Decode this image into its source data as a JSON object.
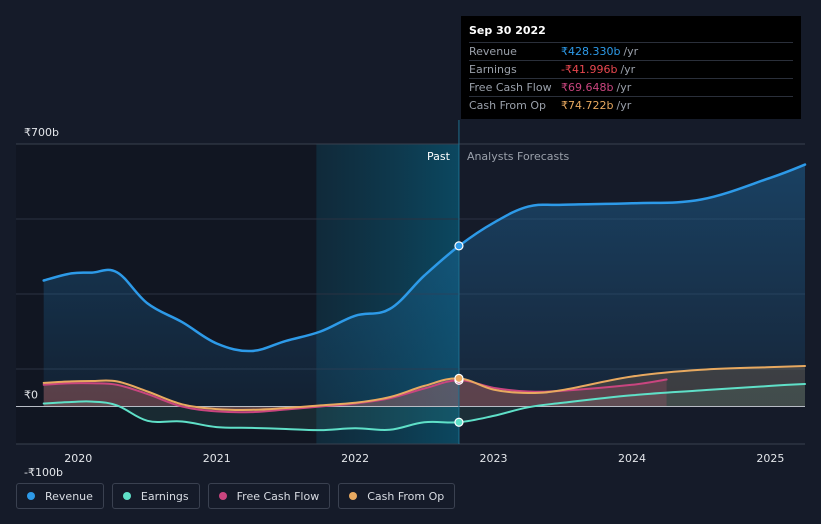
{
  "chart_data": {
    "type": "area",
    "x_unit": "year",
    "xlim": [
      2019.55,
      2025.25
    ],
    "ylim": [
      -100,
      700
    ],
    "y_ticks": [
      {
        "value": 700,
        "label": "₹700b"
      },
      {
        "value": 0,
        "label": "₹0"
      },
      {
        "value": -100,
        "label": "-₹100b"
      }
    ],
    "x_ticks": [
      {
        "value": 2020,
        "label": "2020"
      },
      {
        "value": 2021,
        "label": "2021"
      },
      {
        "value": 2022,
        "label": "2022"
      },
      {
        "value": 2023,
        "label": "2023"
      },
      {
        "value": 2024,
        "label": "2024"
      },
      {
        "value": 2025,
        "label": "2025"
      }
    ],
    "gridlines_y": [
      500,
      300,
      100
    ],
    "divider_x": 2022.75,
    "past_region_start": 2021.72,
    "past_label": "Past",
    "forecast_label": "Analysts Forecasts",
    "series": [
      {
        "name": "Revenue",
        "color": "#2d9ae8",
        "points": [
          [
            2019.75,
            336
          ],
          [
            2019.95,
            355
          ],
          [
            2020.1,
            357
          ],
          [
            2020.28,
            358
          ],
          [
            2020.5,
            275
          ],
          [
            2020.75,
            225
          ],
          [
            2021.0,
            168
          ],
          [
            2021.25,
            148
          ],
          [
            2021.5,
            175
          ],
          [
            2021.75,
            200
          ],
          [
            2022.0,
            242
          ],
          [
            2022.25,
            260
          ],
          [
            2022.5,
            349
          ],
          [
            2022.75,
            428
          ]
        ],
        "forecast": [
          [
            2022.75,
            428
          ],
          [
            2023.0,
            490
          ],
          [
            2023.25,
            533
          ],
          [
            2023.5,
            538
          ],
          [
            2024.0,
            542
          ],
          [
            2024.5,
            552
          ],
          [
            2025.0,
            610
          ],
          [
            2025.25,
            645
          ]
        ]
      },
      {
        "name": "Earnings",
        "color": "#5fe0c8",
        "points": [
          [
            2019.75,
            8
          ],
          [
            2019.95,
            12
          ],
          [
            2020.1,
            13
          ],
          [
            2020.28,
            3
          ],
          [
            2020.5,
            -38
          ],
          [
            2020.75,
            -40
          ],
          [
            2021.0,
            -55
          ],
          [
            2021.25,
            -57
          ],
          [
            2021.5,
            -60
          ],
          [
            2021.75,
            -63
          ],
          [
            2022.0,
            -58
          ],
          [
            2022.25,
            -62
          ],
          [
            2022.5,
            -42
          ],
          [
            2022.75,
            -42
          ]
        ],
        "forecast": [
          [
            2022.75,
            -42
          ],
          [
            2023.0,
            -25
          ],
          [
            2023.25,
            -2
          ],
          [
            2023.5,
            10
          ],
          [
            2024.0,
            30
          ],
          [
            2024.5,
            43
          ],
          [
            2025.0,
            55
          ],
          [
            2025.25,
            60
          ]
        ]
      },
      {
        "name": "Free Cash Flow",
        "color": "#c9457f",
        "points": [
          [
            2019.75,
            58
          ],
          [
            2019.95,
            62
          ],
          [
            2020.1,
            62
          ],
          [
            2020.28,
            58
          ],
          [
            2020.5,
            33
          ],
          [
            2020.75,
            0
          ],
          [
            2021.0,
            -13
          ],
          [
            2021.25,
            -15
          ],
          [
            2021.5,
            -8
          ],
          [
            2021.75,
            0
          ],
          [
            2022.0,
            8
          ],
          [
            2022.25,
            22
          ],
          [
            2022.5,
            48
          ],
          [
            2022.75,
            70
          ]
        ],
        "forecast": [
          [
            2022.75,
            70
          ],
          [
            2023.0,
            50
          ],
          [
            2023.25,
            40
          ],
          [
            2023.5,
            42
          ],
          [
            2024.0,
            58
          ],
          [
            2024.25,
            72
          ]
        ]
      },
      {
        "name": "Cash From Op",
        "color": "#e8a960",
        "points": [
          [
            2019.75,
            63
          ],
          [
            2019.95,
            67
          ],
          [
            2020.1,
            68
          ],
          [
            2020.28,
            67
          ],
          [
            2020.5,
            40
          ],
          [
            2020.75,
            6
          ],
          [
            2021.0,
            -7
          ],
          [
            2021.25,
            -9
          ],
          [
            2021.5,
            -4
          ],
          [
            2021.75,
            3
          ],
          [
            2022.0,
            10
          ],
          [
            2022.25,
            25
          ],
          [
            2022.5,
            55
          ],
          [
            2022.75,
            75
          ]
        ],
        "forecast": [
          [
            2022.75,
            75
          ],
          [
            2023.0,
            45
          ],
          [
            2023.25,
            36
          ],
          [
            2023.5,
            44
          ],
          [
            2024.0,
            80
          ],
          [
            2024.5,
            98
          ],
          [
            2025.0,
            105
          ],
          [
            2025.25,
            108
          ]
        ]
      }
    ],
    "highlight_markers": [
      {
        "series": "Revenue",
        "x": 2022.75,
        "y": 428.33
      },
      {
        "series": "Earnings",
        "x": 2022.75,
        "y": -42
      },
      {
        "series": "Free Cash Flow",
        "x": 2022.75,
        "y": 70
      },
      {
        "series": "Cash From Op",
        "x": 2022.75,
        "y": 75
      }
    ]
  },
  "tooltip": {
    "date": "Sep 30 2022",
    "rows": [
      {
        "label": "Revenue",
        "value": "₹428.330b",
        "unit": "/yr",
        "color": "#2d9ae8"
      },
      {
        "label": "Earnings",
        "value": "-₹41.996b",
        "unit": "/yr",
        "color": "#e8474f"
      },
      {
        "label": "Free Cash Flow",
        "value": "₹69.648b",
        "unit": "/yr",
        "color": "#c9457f"
      },
      {
        "label": "Cash From Op",
        "value": "₹74.722b",
        "unit": "/yr",
        "color": "#e8a960"
      }
    ]
  },
  "legend": [
    {
      "label": "Revenue",
      "color": "#2d9ae8"
    },
    {
      "label": "Earnings",
      "color": "#5fe0c8"
    },
    {
      "label": "Free Cash Flow",
      "color": "#c9457f"
    },
    {
      "label": "Cash From Op",
      "color": "#e8a960"
    }
  ]
}
